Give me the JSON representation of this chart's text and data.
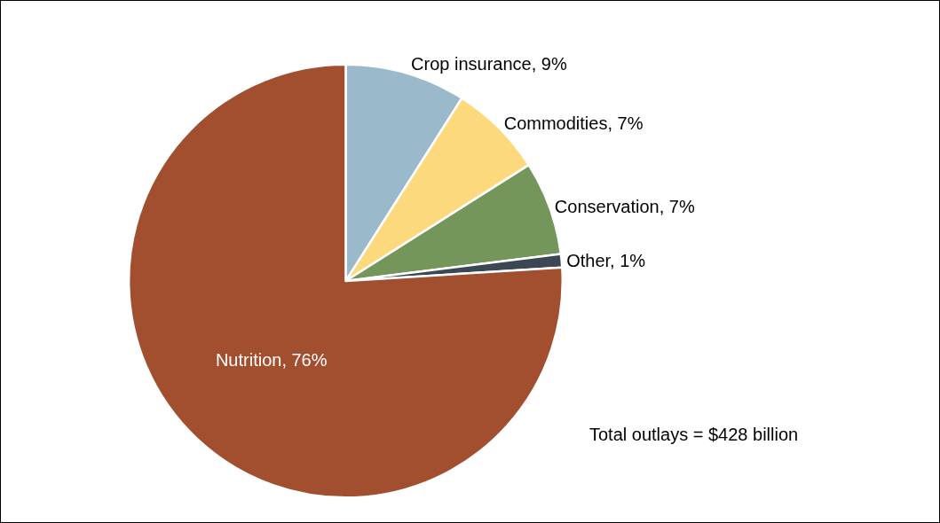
{
  "chart_data": {
    "type": "pie",
    "categories": [
      "Crop insurance",
      "Commodities",
      "Conservation",
      "Other",
      "Nutrition"
    ],
    "values": [
      9,
      7,
      7,
      1,
      76
    ],
    "value_labels": [
      "9%",
      "7%",
      "7%",
      "1%",
      "76%"
    ],
    "colors": [
      "#9ab9cb",
      "#fdd97e",
      "#74965a",
      "#3d4753",
      "#a24f30"
    ],
    "annotations": [
      "Total outlays = $428 billion"
    ],
    "legend": false
  }
}
